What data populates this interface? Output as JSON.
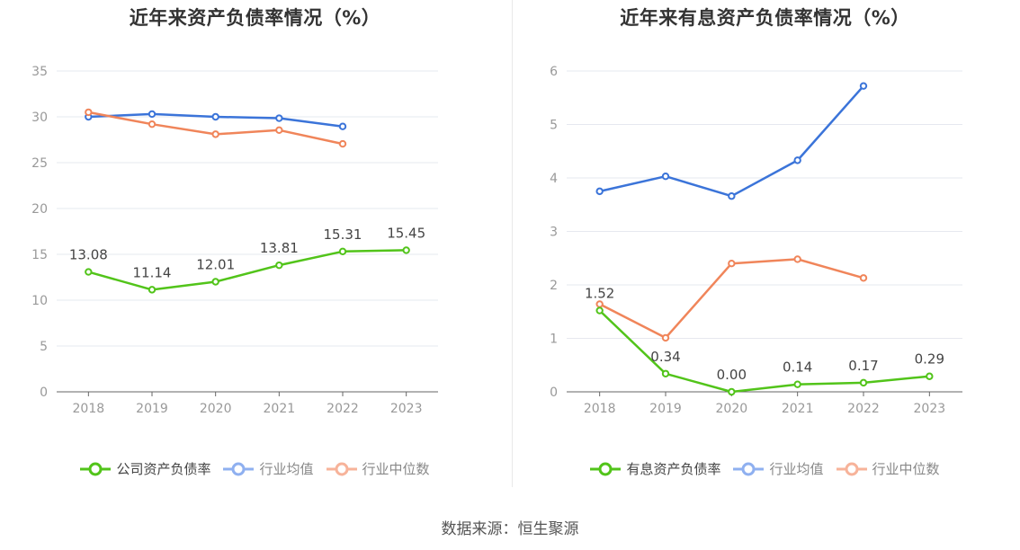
{
  "chart_data": [
    {
      "type": "line",
      "title": "近年来资产负债率情况（%）",
      "categories": [
        "2018",
        "2019",
        "2020",
        "2021",
        "2022",
        "2023"
      ],
      "ylim": [
        0,
        35
      ],
      "yticks": [
        0,
        5,
        10,
        15,
        20,
        25,
        30,
        35
      ],
      "grid": true,
      "legend_position": "bottom",
      "series": [
        {
          "name": "公司资产负债率",
          "color": "#52c41a",
          "values": [
            13.08,
            11.14,
            12.01,
            13.81,
            15.31,
            15.45
          ],
          "labels": [
            "13.08",
            "11.14",
            "12.01",
            "13.81",
            "15.31",
            "15.45"
          ]
        },
        {
          "name": "行业均值",
          "color": "#3b74d9",
          "values": [
            30.0,
            30.3,
            30.0,
            29.85,
            28.95,
            null
          ]
        },
        {
          "name": "行业中位数",
          "color": "#f0855a",
          "values": [
            30.5,
            29.2,
            28.1,
            28.55,
            27.05,
            null
          ]
        }
      ]
    },
    {
      "type": "line",
      "title": "近年来有息资产负债率情况（%）",
      "categories": [
        "2018",
        "2019",
        "2020",
        "2021",
        "2022",
        "2023"
      ],
      "ylim": [
        0,
        6
      ],
      "yticks": [
        0,
        1,
        2,
        3,
        4,
        5,
        6
      ],
      "grid": true,
      "legend_position": "bottom",
      "series": [
        {
          "name": "有息资产负债率",
          "color": "#52c41a",
          "values": [
            1.52,
            0.34,
            0.0,
            0.14,
            0.17,
            0.29
          ],
          "labels": [
            "1.52",
            "0.34",
            "0.00",
            "0.14",
            "0.17",
            "0.29"
          ]
        },
        {
          "name": "行业均值",
          "color": "#3b74d9",
          "values": [
            3.75,
            4.03,
            3.66,
            4.33,
            5.72,
            null
          ]
        },
        {
          "name": "行业中位数",
          "color": "#f0855a",
          "values": [
            1.64,
            1.01,
            2.4,
            2.48,
            2.13,
            null
          ]
        }
      ]
    }
  ],
  "source": "数据来源：恒生聚源"
}
